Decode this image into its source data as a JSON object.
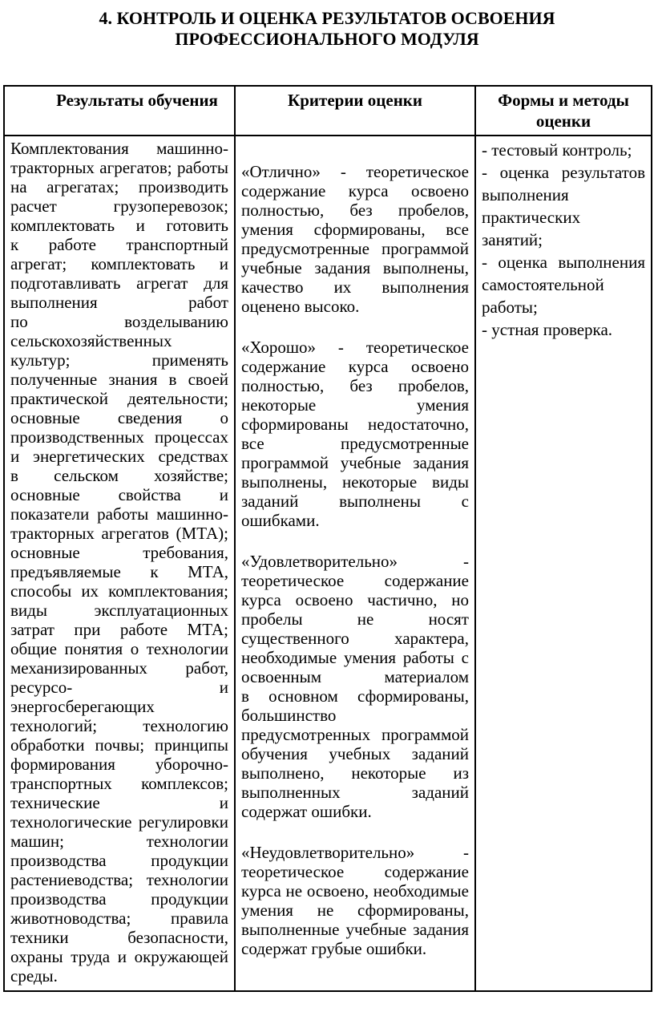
{
  "document": {
    "title": "4. КОНТРОЛЬ И ОЦЕНКА РЕЗУЛЬТАТОВ ОСВОЕНИЯ ПРОФЕССИОНАЛЬНОГО МОДУЛЯ"
  },
  "table": {
    "headers": {
      "results": "Результаты обучения",
      "criteria": "Критерии оценки",
      "forms": "Формы и методы оценки"
    },
    "results_text": "Комплектования машинно-тракторных агрегатов; работы на агрегатах; производить расчет грузоперевозок; комплектовать и готовить к работе транспортный агрегат; комплектовать и подготавливать агрегат для выполнения работ по возделыванию сельскохозяйственных культур; применять полученные знания в своей практической деятельности; основные сведения о производственных процессах и энергетических средствах в сельском хозяйстве; основные свойства и показатели работы машинно-тракторных агрегатов (МТА); основные требования, предъявляемые к МТА, способы их комплектования; виды эксплуатационных затрат при работе МТА; общие понятия о технологии механизированных работ, ресурсо- и энергосберегающих технологий; технологию обработки почвы; принципы формирования уборочно-транспортных комплексов; технические и технологические регулировки машин; технологии производства продукции растениеводства; технологии производства продукции животноводства; правила техники безопасности, охраны труда и окружающей среды.",
    "criteria_paragraphs": [
      "«Отлично» - теоретическое содержание курса освоено полностью, без пробелов, умения сформированы, все предусмотренные программой учебные задания выполнены, качество их выполнения оценено высоко.",
      "«Хорошо» - теоретическое содержание курса освоено полностью, без пробелов, некоторые умения сформированы недостаточно, все предусмотренные программой учебные задания выполнены, некоторые виды заданий выполнены с ошибками.",
      "«Удовлетворительно» - теоретическое содержание курса освоено частично, но пробелы не носят существенного характера, необходимые умения работы с освоенным материалом в основном сформированы, большинство предусмотренных программой обучения учебных заданий выполнено, некоторые из выполненных заданий содержат ошибки.",
      "«Неудовлетворительно» - теоретическое содержание курса не освоено, необходимые умения не сформированы, выполненные учебные задания содержат грубые ошибки."
    ],
    "forms_items": [
      "- тестовый контроль;",
      "- оценка результатов выполнения практических занятий;",
      "- оценка выполнения самостоятельной работы;",
      "- устная проверка."
    ]
  }
}
